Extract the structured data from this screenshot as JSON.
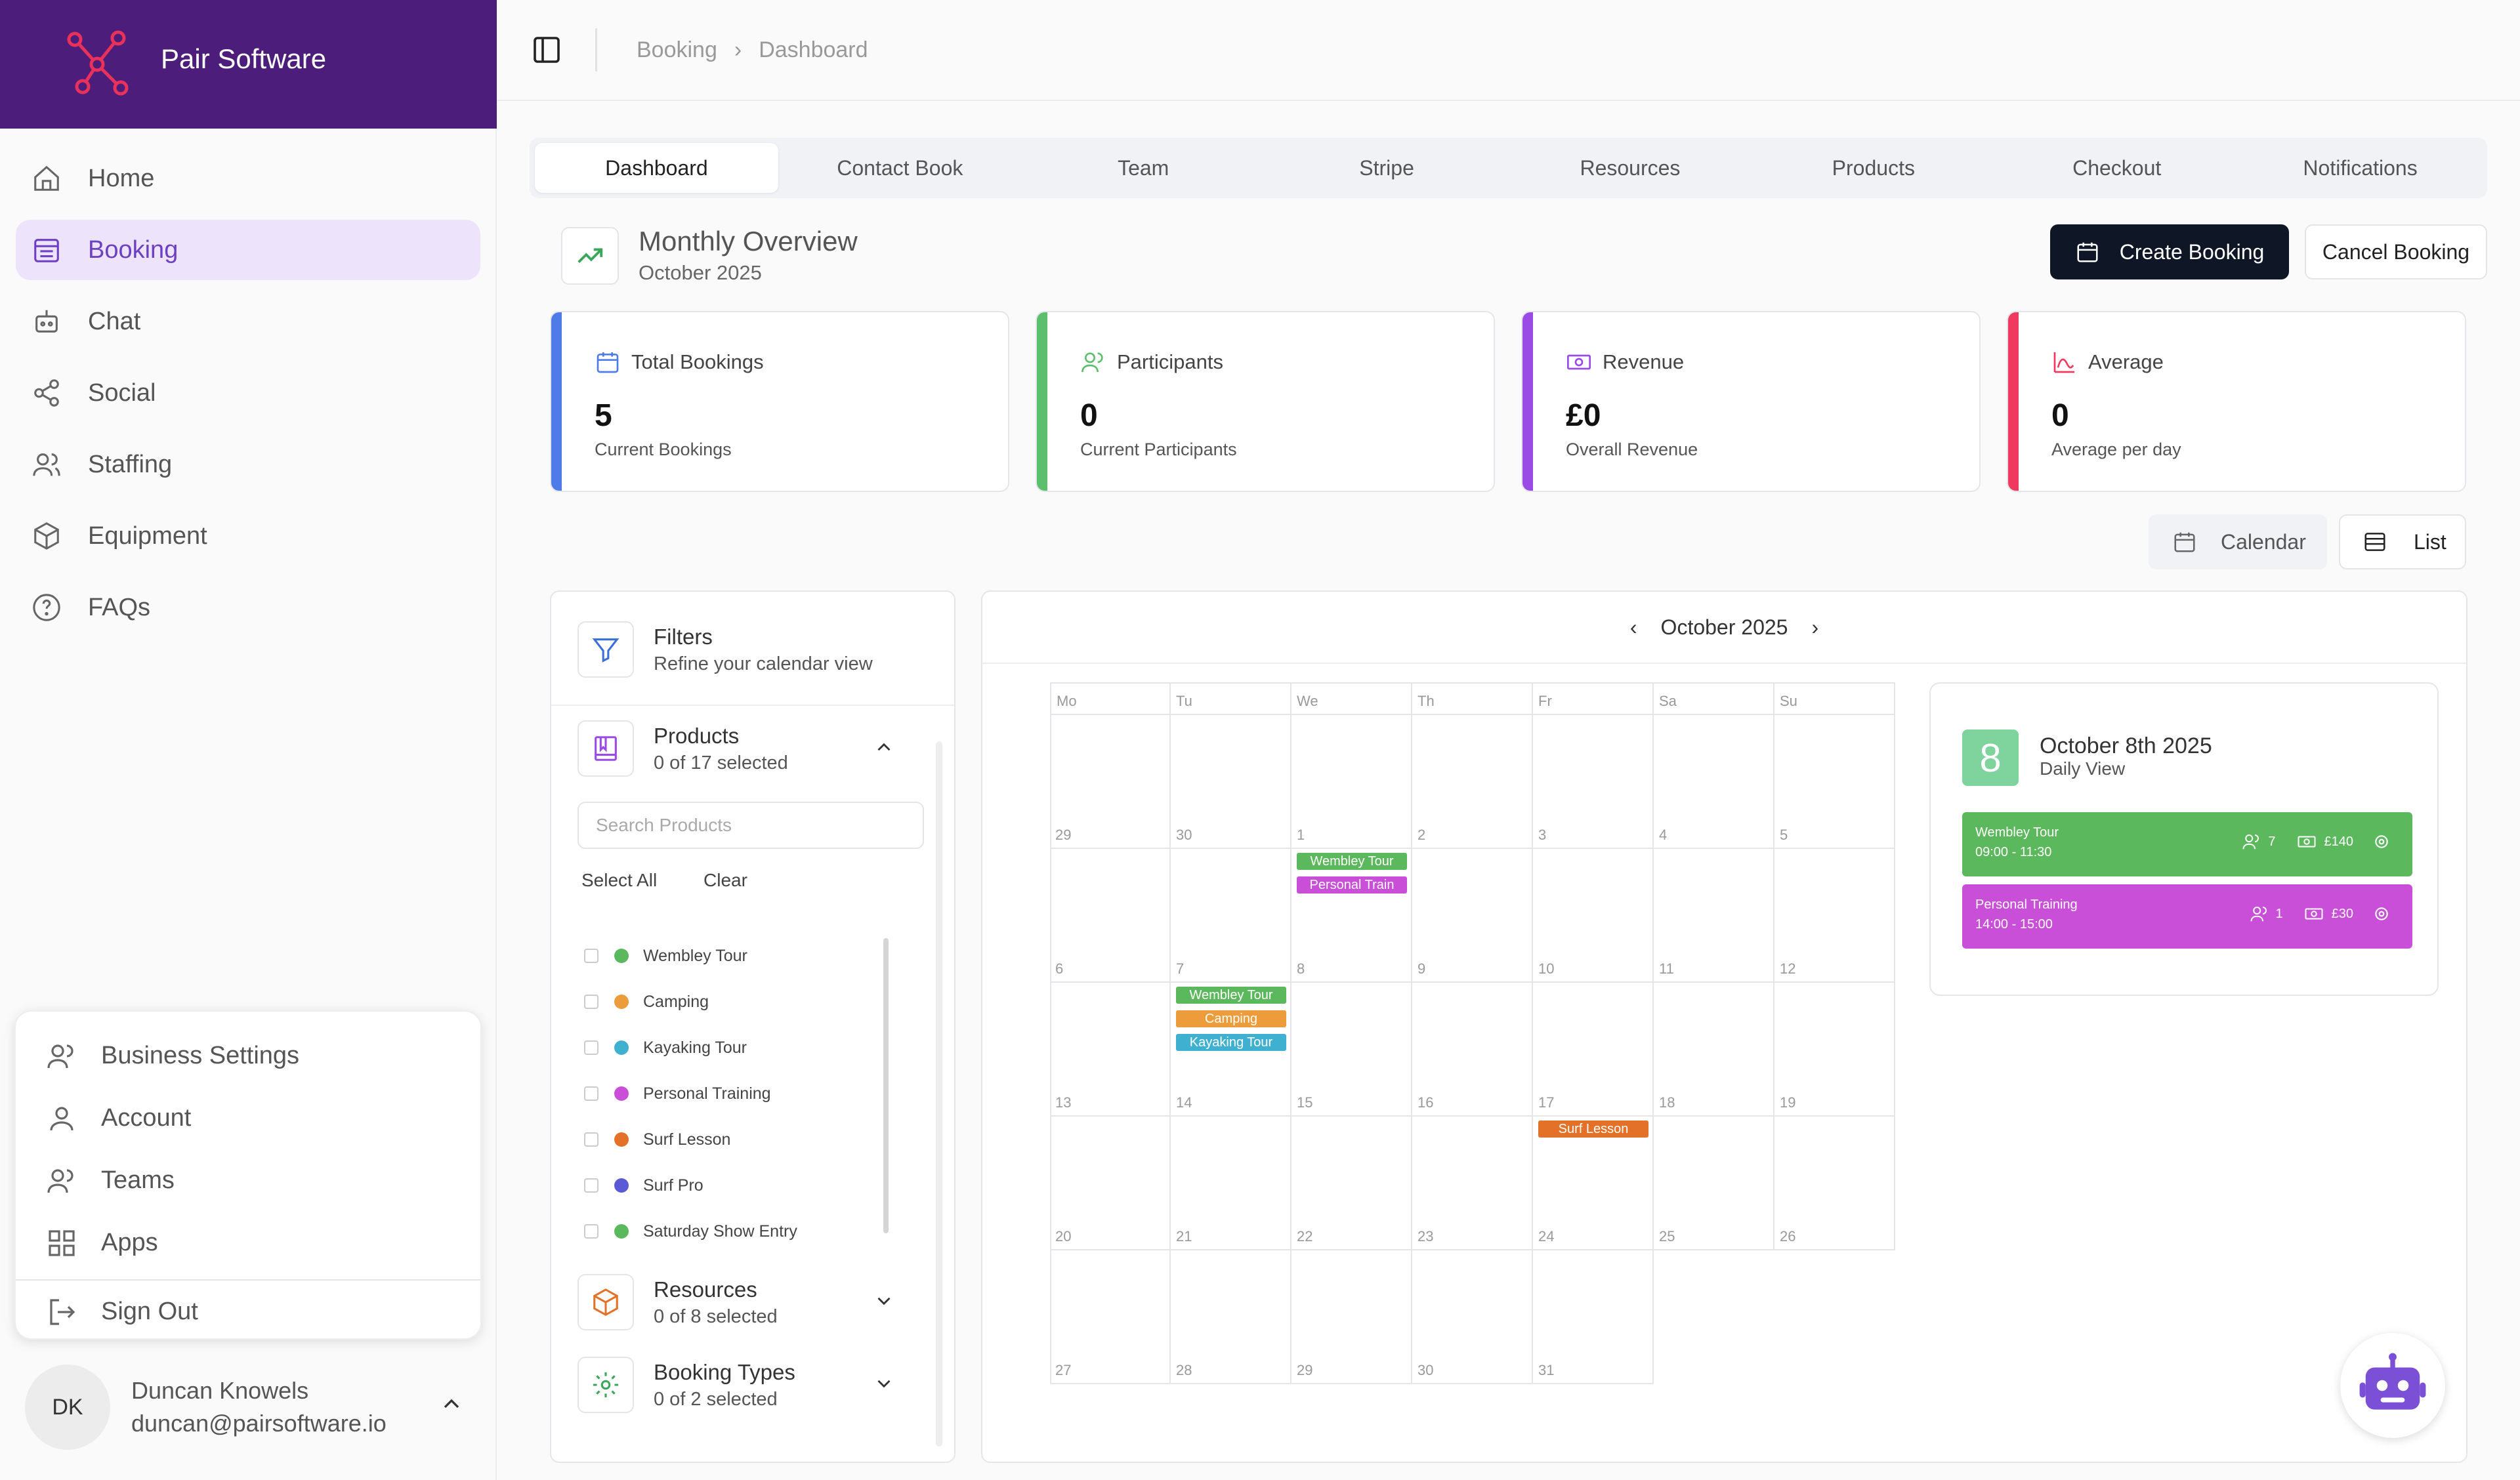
{
  "brand": {
    "name": "Pair Software"
  },
  "nav": [
    {
      "label": "Home",
      "icon": "home-icon"
    },
    {
      "label": "Booking",
      "icon": "calendar-grid-icon",
      "active": true
    },
    {
      "label": "Chat",
      "icon": "robot-icon"
    },
    {
      "label": "Social",
      "icon": "share-icon"
    },
    {
      "label": "Staffing",
      "icon": "users-icon"
    },
    {
      "label": "Equipment",
      "icon": "box-icon"
    },
    {
      "label": "FAQs",
      "icon": "help-icon"
    }
  ],
  "menu": {
    "items": [
      "Business Settings",
      "Account",
      "Teams",
      "Apps"
    ],
    "sign_out": "Sign Out"
  },
  "user": {
    "initials": "DK",
    "name": "Duncan Knowels",
    "email": "duncan@pairsoftware.io"
  },
  "breadcrumb": [
    "Booking",
    "Dashboard"
  ],
  "tabs": [
    "Dashboard",
    "Contact Book",
    "Team",
    "Stripe",
    "Resources",
    "Products",
    "Checkout",
    "Notifications"
  ],
  "overview": {
    "title": "Monthly Overview",
    "subtitle": "October 2025"
  },
  "actions": {
    "create": "Create Booking",
    "cancel": "Cancel Booking"
  },
  "stats": [
    {
      "label": "Total Bookings",
      "value": "5",
      "sub": "Current Bookings",
      "color": "#4f7be8"
    },
    {
      "label": "Participants",
      "value": "0",
      "sub": "Current Participants",
      "color": "#5cbf6c"
    },
    {
      "label": "Revenue",
      "value": "£0",
      "sub": "Overall Revenue",
      "color": "#9a4be6"
    },
    {
      "label": "Average",
      "value": "0",
      "sub": "Average per day",
      "color": "#f0395f"
    }
  ],
  "views": {
    "calendar": "Calendar",
    "list": "List"
  },
  "filters": {
    "title": "Filters",
    "subtitle": "Refine your calendar view",
    "products": {
      "title": "Products",
      "count": "0 of 17 selected"
    },
    "search_placeholder": "Search Products",
    "select_all": "Select All",
    "clear": "Clear",
    "items": [
      {
        "label": "Wembley Tour",
        "color": "#5cb85c"
      },
      {
        "label": "Camping",
        "color": "#ec9c3a"
      },
      {
        "label": "Kayaking Tour",
        "color": "#3fb0cf"
      },
      {
        "label": "Personal Training",
        "color": "#c94fd8"
      },
      {
        "label": "Surf Lesson",
        "color": "#e37127"
      },
      {
        "label": "Surf Pro",
        "color": "#5a5ad6"
      },
      {
        "label": "Saturday Show Entry",
        "color": "#5cb85c"
      }
    ],
    "resources": {
      "title": "Resources",
      "count": "0 of 8 selected"
    },
    "booking_types": {
      "title": "Booking Types",
      "count": "0 of 2 selected"
    }
  },
  "calendar": {
    "month": "October 2025",
    "days": [
      "Mo",
      "Tu",
      "We",
      "Th",
      "Fr",
      "Sa",
      "Su"
    ],
    "weeks": [
      [
        "29",
        "30",
        "1",
        "2",
        "3",
        "4",
        "5"
      ],
      [
        "6",
        "7",
        "8",
        "9",
        "10",
        "11",
        "12"
      ],
      [
        "13",
        "14",
        "15",
        "16",
        "17",
        "18",
        "19"
      ],
      [
        "20",
        "21",
        "22",
        "23",
        "24",
        "25",
        "26"
      ],
      [
        "27",
        "28",
        "29",
        "30",
        "31",
        "",
        ""
      ]
    ],
    "events": [
      {
        "week": 0,
        "day": 2,
        "slot": 0,
        "label": "Wembley Tour",
        "color": "#5cb85c"
      },
      {
        "week": 0,
        "day": 2,
        "slot": 1,
        "label": "Personal Train",
        "color": "#c94fd8"
      },
      {
        "week": 1,
        "day": 1,
        "slot": 0,
        "label": "Wembley Tour",
        "color": "#5cb85c"
      },
      {
        "week": 1,
        "day": 1,
        "slot": 1,
        "label": "Camping",
        "color": "#ec9c3a"
      },
      {
        "week": 1,
        "day": 1,
        "slot": 2,
        "label": "Kayaking Tour",
        "color": "#3fb0cf"
      },
      {
        "week": 2,
        "day": 4,
        "slot": 0,
        "label": "Surf Lesson",
        "color": "#e37127"
      }
    ]
  },
  "daily": {
    "day": "8",
    "date": "October 8th 2025",
    "view": "Daily View",
    "events": [
      {
        "title": "Wembley Tour",
        "time": "09:00 - 11:30",
        "participants": "7",
        "price": "£140",
        "color": "#5cb85c"
      },
      {
        "title": "Personal Training",
        "time": "14:00 - 15:00",
        "participants": "1",
        "price": "£30",
        "color": "#c94fd8"
      }
    ]
  }
}
